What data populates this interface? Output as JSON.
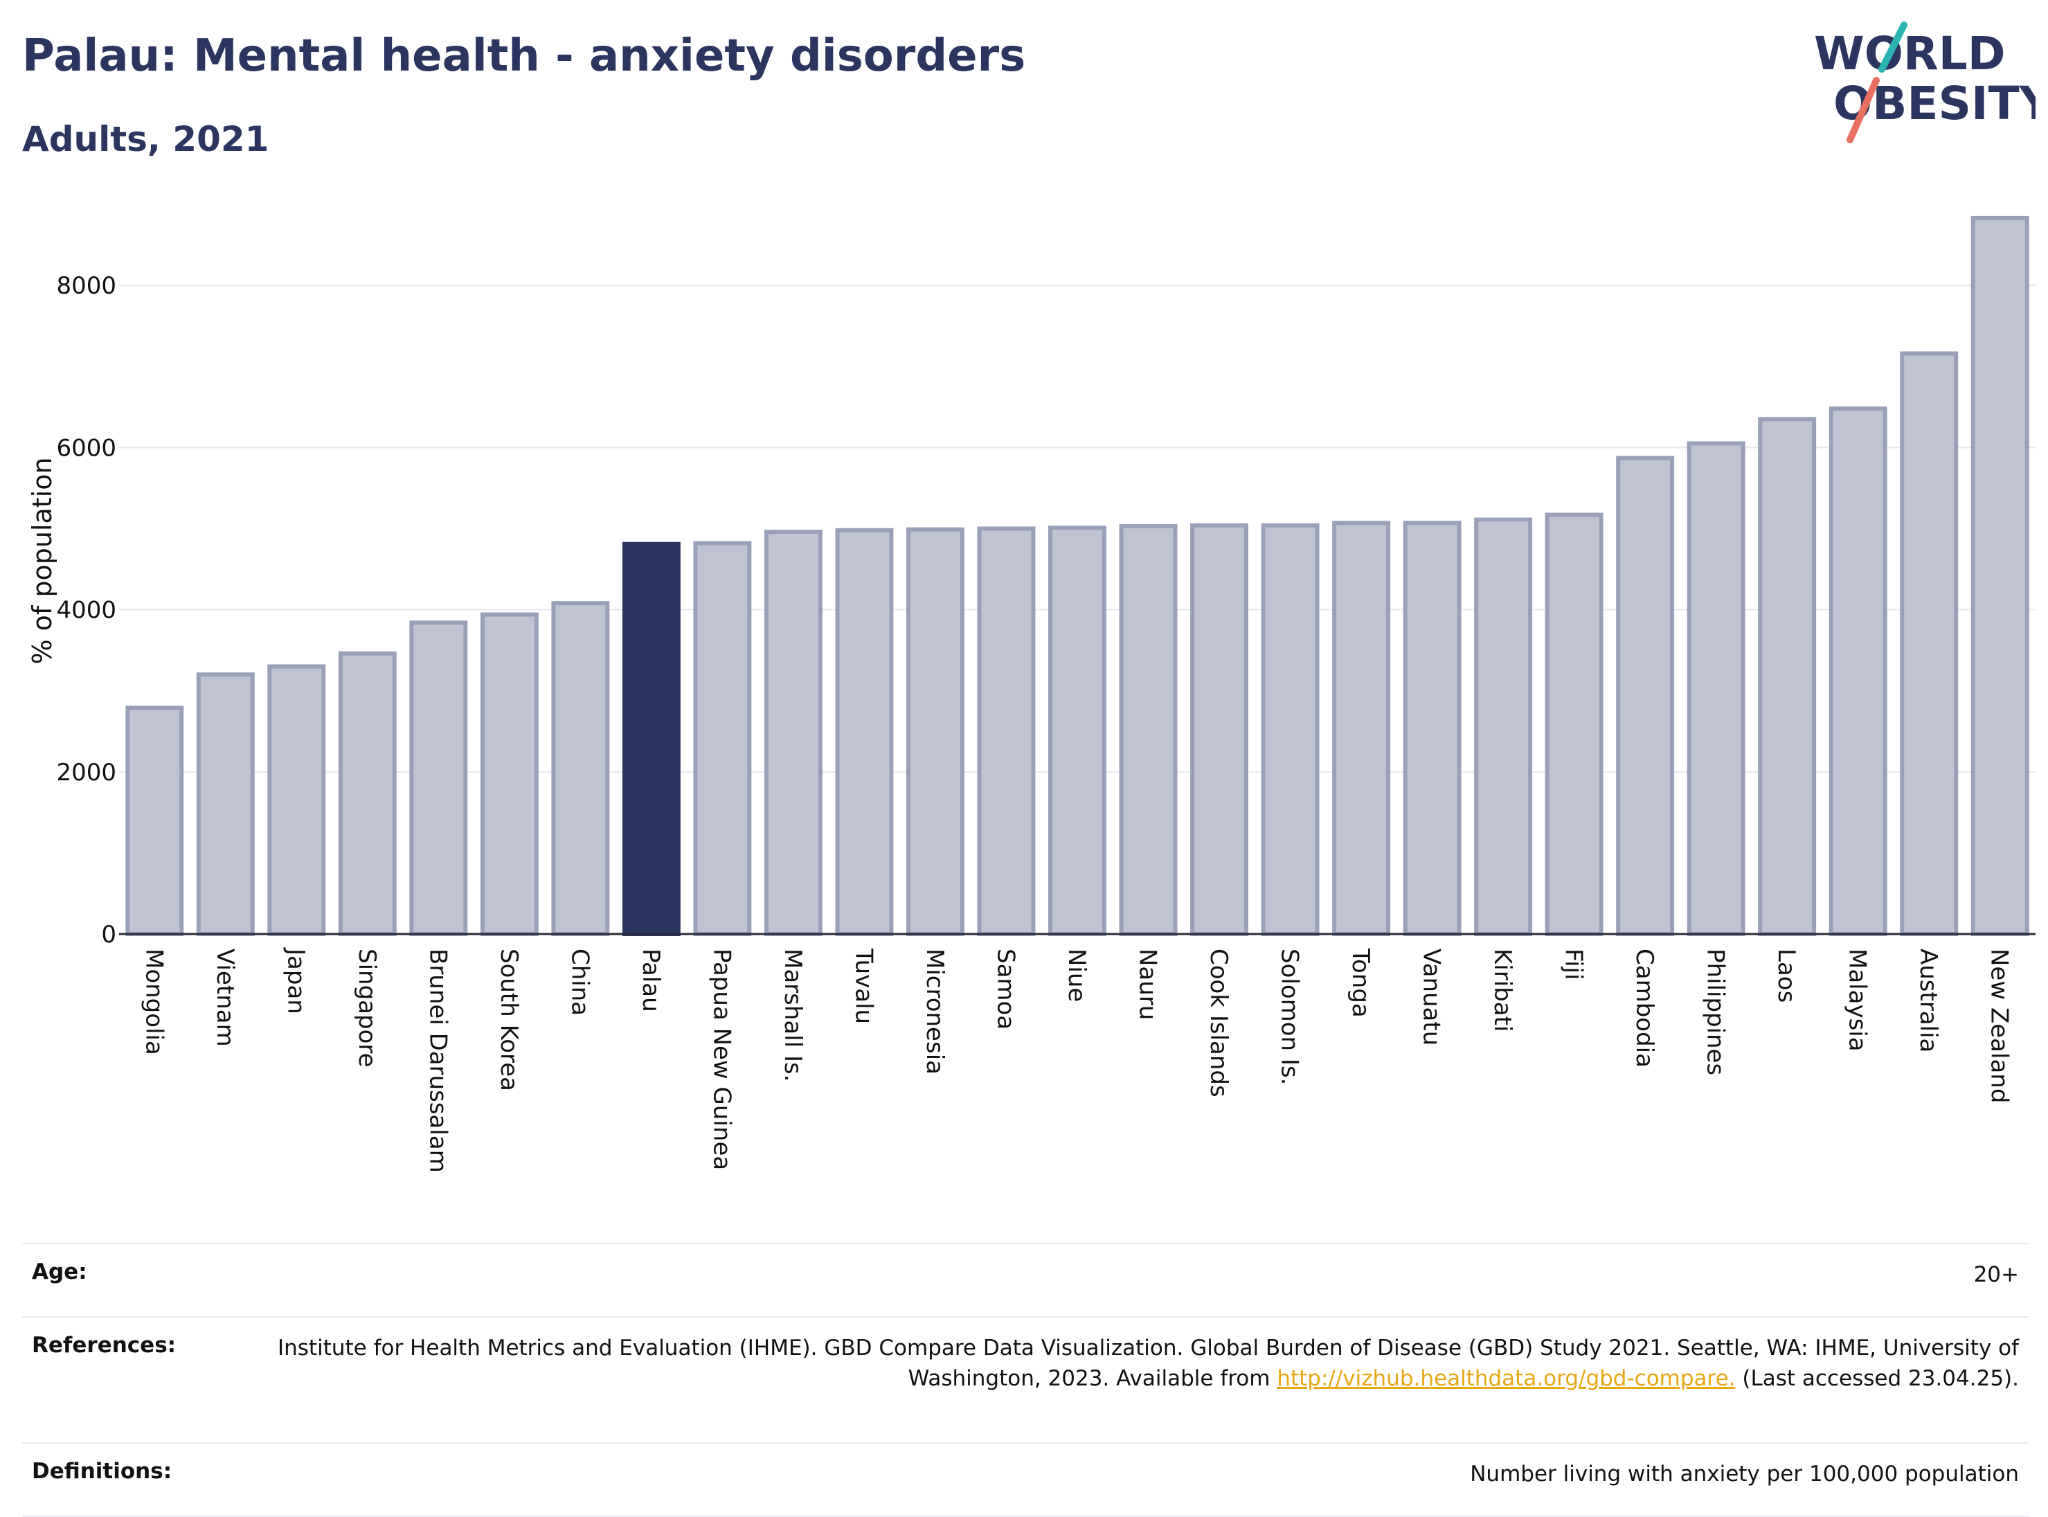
{
  "header": {
    "title": "Palau: Mental health - anxiety disorders",
    "subtitle": "Adults, 2021"
  },
  "logo": {
    "line1": "WORLD",
    "line2": "OBESITY"
  },
  "colors": {
    "highlight": "#2b3560",
    "bar": "#c0c4d2",
    "bar_border": "#9aa0b8",
    "accent_slash1": "#2bb5b1",
    "accent_slash2": "#e8705f"
  },
  "chart_data": {
    "type": "bar",
    "ylabel": "% of population",
    "xlabel": "",
    "ylim": [
      0,
      9000
    ],
    "yticks": [
      0,
      2000,
      4000,
      6000,
      8000
    ],
    "highlight": "Palau",
    "grid": true,
    "categories": [
      "Mongolia",
      "Vietnam",
      "Japan",
      "Singapore",
      "Brunei Darussalam",
      "South Korea",
      "China",
      "Palau",
      "Papua New Guinea",
      "Marshall Is.",
      "Tuvalu",
      "Micronesia",
      "Samoa",
      "Niue",
      "Nauru",
      "Cook Islands",
      "Solomon Is.",
      "Tonga",
      "Vanuatu",
      "Kiribati",
      "Fiji",
      "Cambodia",
      "Philippines",
      "Laos",
      "Malaysia",
      "Australia",
      "New Zealand"
    ],
    "values": [
      2790,
      3200,
      3300,
      3460,
      3840,
      3940,
      4080,
      4810,
      4820,
      4960,
      4980,
      4990,
      5000,
      5010,
      5030,
      5040,
      5040,
      5070,
      5070,
      5110,
      5170,
      5870,
      6050,
      6350,
      6480,
      7160,
      8830
    ]
  },
  "meta": {
    "age_label": "Age:",
    "age_value": "20+",
    "references_label": "References:",
    "references_text": "Institute for Health Metrics and Evaluation (IHME). GBD Compare Data Visualization. Global Burden of Disease (GBD) Study 2021. Seattle, WA: IHME, University of Washington, 2023. Available from",
    "references_link": "http://vizhub.healthdata.org/gbd-compare.",
    "references_tail": "(Last accessed 23.04.25).",
    "definitions_label": "Definitions:",
    "definitions_text": "Number living with anxiety per 100,000 population"
  }
}
